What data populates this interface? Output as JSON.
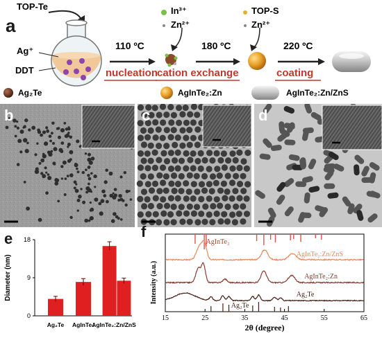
{
  "schematic": {
    "panel": "a",
    "precursor": "TOP-Te",
    "reactants": [
      "Ag⁺",
      "DDT"
    ],
    "temps": [
      "110 ºC",
      "180 ºC",
      "220 ºC"
    ],
    "steps": [
      "nucleation",
      "cation exchange",
      "coating"
    ],
    "additive1": [
      "In³⁺",
      "Zn²⁺"
    ],
    "additive2": [
      "TOP-S",
      "Zn²⁺"
    ],
    "legend": [
      "Ag₂Te",
      "AgInTe₂:Zn",
      "AgInTe₂:Zn/ZnS"
    ],
    "colors": {
      "red": "#c0392b",
      "gold": "#e8a028",
      "purple": "#8e44ad",
      "brown": "#6b3a22"
    }
  },
  "micrographs": {
    "panels": [
      "b",
      "c",
      "d"
    ]
  },
  "panel_e": {
    "letter": "e"
  },
  "panel_f": {
    "letter": "f"
  },
  "chart_data": [
    {
      "type": "bar",
      "ylabel": "Diameter (nm)",
      "categories": [
        "Ag₂Te",
        "AgInTe₂",
        "AgInTe₂:Zn/ZnS"
      ],
      "yticks": [
        0,
        9,
        18
      ],
      "ylim": [
        0,
        18
      ],
      "bars": [
        {
          "category": 0,
          "value": 4.0,
          "err": 0.6
        },
        {
          "category": 1,
          "value": 8.0,
          "err": 0.8
        },
        {
          "category": 2,
          "value": 16.5,
          "err": 1.0
        },
        {
          "category": 2,
          "value": 8.3,
          "err": 0.6
        }
      ],
      "color": "#e02020",
      "grid": false
    },
    {
      "type": "line",
      "xlabel": "2θ (degree)",
      "ylabel": "Intensity (a.u.)",
      "xticks": [
        15,
        25,
        35,
        45,
        55,
        65
      ],
      "xlim": [
        15,
        65
      ],
      "reference_label": "AgInTe₂",
      "reference_peaks": [
        22.5,
        24.8,
        25.3,
        38.0,
        39.8,
        41.5,
        42.7,
        46.5,
        47.3,
        49.1,
        52.8,
        54.3
      ],
      "series": [
        {
          "name": "AgInTe₂:Zn/ZnS",
          "color": "#e8885a",
          "peaks": [
            [
              23.5,
              0.7,
              0.7
            ],
            [
              24.8,
              0.9,
              0.6
            ],
            [
              40.0,
              0.55,
              0.8
            ],
            [
              47.0,
              0.35,
              0.9
            ]
          ]
        },
        {
          "name": "AgInTe₂:Zn",
          "color": "#8b3a2e",
          "peaks": [
            [
              23.3,
              0.8,
              0.6
            ],
            [
              24.6,
              1.0,
              0.5
            ],
            [
              30.0,
              0.2,
              0.5
            ],
            [
              39.8,
              0.65,
              0.7
            ],
            [
              46.8,
              0.4,
              0.8
            ]
          ]
        },
        {
          "name": "Ag₂Te",
          "color": "#4a1e14",
          "peaks": [
            [
              20.0,
              0.55,
              2.5
            ],
            [
              26.5,
              0.25,
              0.4
            ],
            [
              29.5,
              0.35,
              0.4
            ],
            [
              31.0,
              0.3,
              0.4
            ],
            [
              37.0,
              0.3,
              0.4
            ],
            [
              38.5,
              0.4,
              0.4
            ],
            [
              42.5,
              0.25,
              0.4
            ],
            [
              44.0,
              0.2,
              0.4
            ]
          ]
        }
      ],
      "bottom_label": "Ag₂Te",
      "grid": false
    }
  ]
}
